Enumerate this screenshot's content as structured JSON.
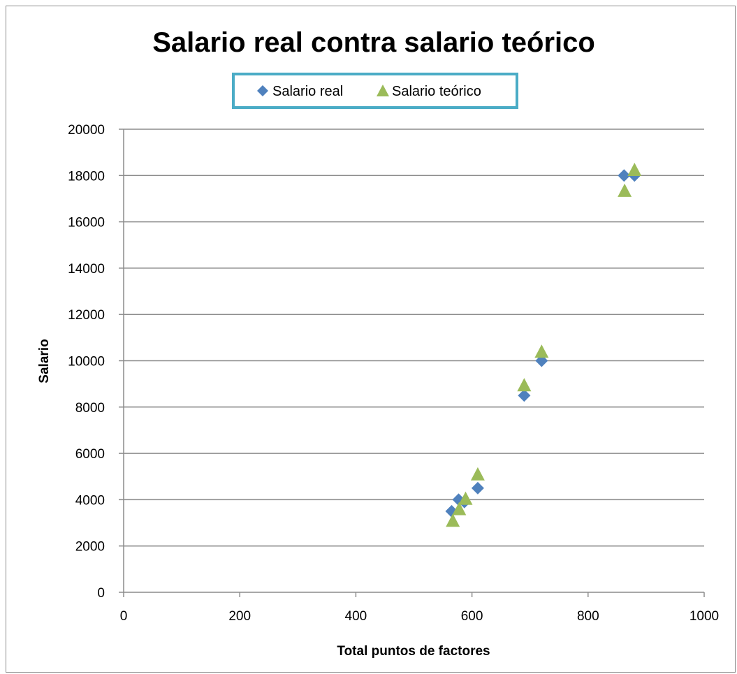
{
  "chart_data": {
    "type": "scatter",
    "title": "Salario real contra salario teórico",
    "xlabel": "Total puntos de factores",
    "ylabel": "Salario",
    "xlim": [
      0,
      1000
    ],
    "ylim": [
      0,
      20000
    ],
    "x_ticks": [
      "0",
      "200",
      "400",
      "600",
      "800",
      "1000"
    ],
    "y_ticks": [
      "0",
      "2000",
      "4000",
      "6000",
      "8000",
      "10000",
      "12000",
      "14000",
      "16000",
      "18000",
      "20000"
    ],
    "grid": "horizontal",
    "legend_position": "top",
    "series": [
      {
        "name": "Salario real",
        "marker": "diamond",
        "color": "#4f81bd",
        "points": [
          {
            "x": 565,
            "y": 3500
          },
          {
            "x": 577,
            "y": 4000
          },
          {
            "x": 587,
            "y": 3900
          },
          {
            "x": 610,
            "y": 4500
          },
          {
            "x": 690,
            "y": 8500
          },
          {
            "x": 720,
            "y": 10000
          },
          {
            "x": 862,
            "y": 18000
          },
          {
            "x": 880,
            "y": 18000
          }
        ]
      },
      {
        "name": "Salario teórico",
        "marker": "triangle",
        "color": "#9bbb59",
        "points": [
          {
            "x": 567,
            "y": 3100
          },
          {
            "x": 578,
            "y": 3600
          },
          {
            "x": 589,
            "y": 4050
          },
          {
            "x": 610,
            "y": 5100
          },
          {
            "x": 690,
            "y": 8950
          },
          {
            "x": 720,
            "y": 10400
          },
          {
            "x": 863,
            "y": 17350
          },
          {
            "x": 880,
            "y": 18250
          }
        ]
      }
    ]
  }
}
